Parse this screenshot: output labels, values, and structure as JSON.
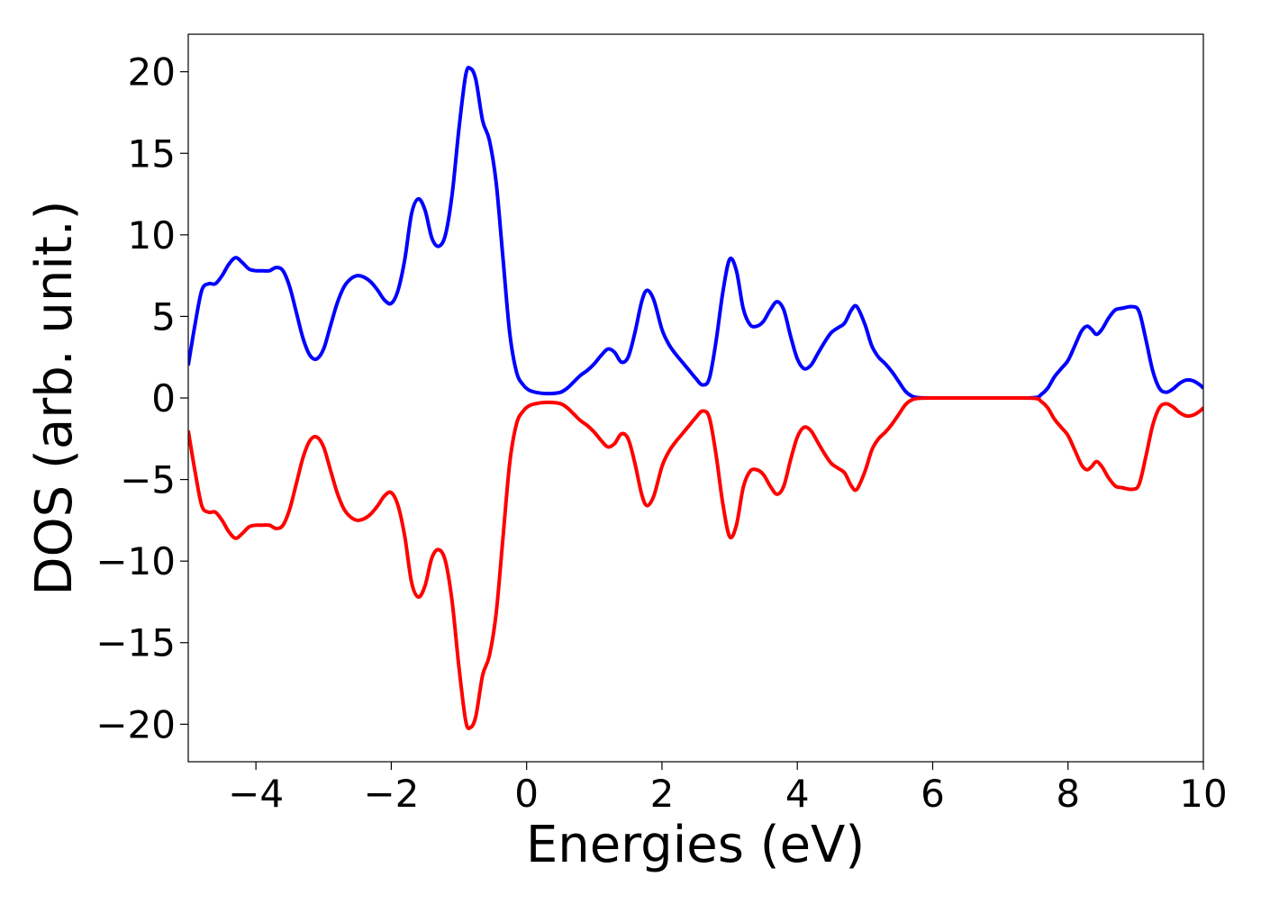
{
  "chart_data": {
    "type": "line",
    "title": "",
    "xlabel": "Energies (eV)",
    "ylabel": "DOS (arb. unit.)",
    "xlim": [
      -5,
      10
    ],
    "ylim": [
      -22.3,
      22.3
    ],
    "xticks": [
      -4,
      -2,
      0,
      2,
      4,
      6,
      8,
      10
    ],
    "xtick_labels": [
      "−4",
      "−2",
      "0",
      "2",
      "4",
      "6",
      "8",
      "10"
    ],
    "yticks": [
      -20,
      -15,
      -10,
      -5,
      0,
      5,
      10,
      15,
      20
    ],
    "ytick_labels": [
      "−20",
      "−15",
      "−10",
      "−5",
      "0",
      "5",
      "10",
      "15",
      "20"
    ],
    "grid": false,
    "legend": "none",
    "series": [
      {
        "color": "#0000ff",
        "points": [
          [
            -5.0,
            2.0
          ],
          [
            -4.9,
            4.5
          ],
          [
            -4.8,
            6.6
          ],
          [
            -4.7,
            7.0
          ],
          [
            -4.6,
            7.0
          ],
          [
            -4.5,
            7.5
          ],
          [
            -4.4,
            8.2
          ],
          [
            -4.3,
            8.6
          ],
          [
            -4.2,
            8.3
          ],
          [
            -4.1,
            7.9
          ],
          [
            -4.0,
            7.8
          ],
          [
            -3.9,
            7.8
          ],
          [
            -3.8,
            7.8
          ],
          [
            -3.7,
            8.0
          ],
          [
            -3.6,
            7.8
          ],
          [
            -3.5,
            6.8
          ],
          [
            -3.4,
            5.2
          ],
          [
            -3.3,
            3.6
          ],
          [
            -3.2,
            2.6
          ],
          [
            -3.1,
            2.4
          ],
          [
            -3.0,
            3.0
          ],
          [
            -2.9,
            4.4
          ],
          [
            -2.8,
            5.8
          ],
          [
            -2.7,
            6.8
          ],
          [
            -2.6,
            7.3
          ],
          [
            -2.5,
            7.5
          ],
          [
            -2.4,
            7.4
          ],
          [
            -2.3,
            7.1
          ],
          [
            -2.2,
            6.6
          ],
          [
            -2.1,
            6.0
          ],
          [
            -2.0,
            5.8
          ],
          [
            -1.9,
            6.6
          ],
          [
            -1.8,
            8.5
          ],
          [
            -1.7,
            11.3
          ],
          [
            -1.6,
            12.2
          ],
          [
            -1.5,
            11.5
          ],
          [
            -1.4,
            9.8
          ],
          [
            -1.3,
            9.3
          ],
          [
            -1.2,
            10.0
          ],
          [
            -1.1,
            12.5
          ],
          [
            -1.0,
            16.5
          ],
          [
            -0.9,
            19.8
          ],
          [
            -0.83,
            20.2
          ],
          [
            -0.75,
            19.5
          ],
          [
            -0.65,
            17.0
          ],
          [
            -0.55,
            15.8
          ],
          [
            -0.45,
            13.2
          ],
          [
            -0.35,
            8.6
          ],
          [
            -0.25,
            4.0
          ],
          [
            -0.15,
            1.6
          ],
          [
            -0.05,
            0.8
          ],
          [
            0.05,
            0.45
          ],
          [
            0.2,
            0.3
          ],
          [
            0.35,
            0.27
          ],
          [
            0.5,
            0.35
          ],
          [
            0.6,
            0.6
          ],
          [
            0.7,
            1.0
          ],
          [
            0.8,
            1.4
          ],
          [
            0.9,
            1.7
          ],
          [
            1.0,
            2.1
          ],
          [
            1.1,
            2.6
          ],
          [
            1.2,
            3.0
          ],
          [
            1.3,
            2.8
          ],
          [
            1.4,
            2.2
          ],
          [
            1.5,
            2.5
          ],
          [
            1.6,
            4.0
          ],
          [
            1.7,
            5.9
          ],
          [
            1.78,
            6.6
          ],
          [
            1.88,
            6.0
          ],
          [
            2.0,
            4.2
          ],
          [
            2.1,
            3.3
          ],
          [
            2.2,
            2.7
          ],
          [
            2.3,
            2.2
          ],
          [
            2.4,
            1.7
          ],
          [
            2.5,
            1.2
          ],
          [
            2.6,
            0.8
          ],
          [
            2.7,
            1.2
          ],
          [
            2.8,
            3.5
          ],
          [
            2.9,
            6.5
          ],
          [
            3.0,
            8.5
          ],
          [
            3.1,
            7.8
          ],
          [
            3.2,
            5.5
          ],
          [
            3.3,
            4.5
          ],
          [
            3.4,
            4.4
          ],
          [
            3.5,
            4.7
          ],
          [
            3.6,
            5.4
          ],
          [
            3.7,
            5.9
          ],
          [
            3.8,
            5.4
          ],
          [
            3.9,
            3.8
          ],
          [
            4.0,
            2.4
          ],
          [
            4.1,
            1.8
          ],
          [
            4.2,
            2.0
          ],
          [
            4.3,
            2.7
          ],
          [
            4.4,
            3.4
          ],
          [
            4.5,
            4.0
          ],
          [
            4.6,
            4.3
          ],
          [
            4.7,
            4.6
          ],
          [
            4.8,
            5.4
          ],
          [
            4.88,
            5.6
          ],
          [
            5.0,
            4.5
          ],
          [
            5.1,
            3.2
          ],
          [
            5.2,
            2.5
          ],
          [
            5.3,
            2.1
          ],
          [
            5.4,
            1.6
          ],
          [
            5.5,
            1.0
          ],
          [
            5.6,
            0.4
          ],
          [
            5.7,
            0.1
          ],
          [
            5.8,
            0.02
          ],
          [
            6.0,
            0.0
          ],
          [
            7.0,
            0.0
          ],
          [
            7.5,
            0.02
          ],
          [
            7.6,
            0.2
          ],
          [
            7.7,
            0.6
          ],
          [
            7.8,
            1.3
          ],
          [
            7.9,
            1.8
          ],
          [
            8.0,
            2.3
          ],
          [
            8.1,
            3.2
          ],
          [
            8.2,
            4.1
          ],
          [
            8.28,
            4.4
          ],
          [
            8.35,
            4.2
          ],
          [
            8.42,
            3.9
          ],
          [
            8.5,
            4.2
          ],
          [
            8.6,
            4.9
          ],
          [
            8.7,
            5.4
          ],
          [
            8.8,
            5.5
          ],
          [
            8.95,
            5.6
          ],
          [
            9.05,
            5.3
          ],
          [
            9.15,
            3.6
          ],
          [
            9.25,
            1.7
          ],
          [
            9.35,
            0.6
          ],
          [
            9.45,
            0.35
          ],
          [
            9.55,
            0.55
          ],
          [
            9.65,
            0.9
          ],
          [
            9.75,
            1.1
          ],
          [
            9.85,
            1.05
          ],
          [
            9.95,
            0.8
          ],
          [
            10.0,
            0.6
          ]
        ]
      },
      {
        "color": "#ff0000",
        "points": [
          [
            -5.0,
            -2.0
          ],
          [
            -4.9,
            -4.5
          ],
          [
            -4.8,
            -6.6
          ],
          [
            -4.7,
            -7.0
          ],
          [
            -4.6,
            -7.0
          ],
          [
            -4.5,
            -7.5
          ],
          [
            -4.4,
            -8.2
          ],
          [
            -4.3,
            -8.6
          ],
          [
            -4.2,
            -8.3
          ],
          [
            -4.1,
            -7.9
          ],
          [
            -4.0,
            -7.8
          ],
          [
            -3.9,
            -7.8
          ],
          [
            -3.8,
            -7.8
          ],
          [
            -3.7,
            -8.0
          ],
          [
            -3.6,
            -7.8
          ],
          [
            -3.5,
            -6.8
          ],
          [
            -3.4,
            -5.2
          ],
          [
            -3.3,
            -3.6
          ],
          [
            -3.2,
            -2.6
          ],
          [
            -3.1,
            -2.4
          ],
          [
            -3.0,
            -3.0
          ],
          [
            -2.9,
            -4.4
          ],
          [
            -2.8,
            -5.8
          ],
          [
            -2.7,
            -6.8
          ],
          [
            -2.6,
            -7.3
          ],
          [
            -2.5,
            -7.5
          ],
          [
            -2.4,
            -7.4
          ],
          [
            -2.3,
            -7.1
          ],
          [
            -2.2,
            -6.6
          ],
          [
            -2.1,
            -6.0
          ],
          [
            -2.0,
            -5.8
          ],
          [
            -1.9,
            -6.6
          ],
          [
            -1.8,
            -8.5
          ],
          [
            -1.7,
            -11.3
          ],
          [
            -1.6,
            -12.2
          ],
          [
            -1.5,
            -11.5
          ],
          [
            -1.4,
            -9.8
          ],
          [
            -1.3,
            -9.3
          ],
          [
            -1.2,
            -10.0
          ],
          [
            -1.1,
            -12.5
          ],
          [
            -1.0,
            -16.5
          ],
          [
            -0.9,
            -19.8
          ],
          [
            -0.83,
            -20.2
          ],
          [
            -0.75,
            -19.5
          ],
          [
            -0.65,
            -17.0
          ],
          [
            -0.55,
            -15.8
          ],
          [
            -0.45,
            -13.2
          ],
          [
            -0.35,
            -8.6
          ],
          [
            -0.25,
            -4.0
          ],
          [
            -0.15,
            -1.6
          ],
          [
            -0.05,
            -0.8
          ],
          [
            0.05,
            -0.45
          ],
          [
            0.2,
            -0.3
          ],
          [
            0.35,
            -0.27
          ],
          [
            0.5,
            -0.35
          ],
          [
            0.6,
            -0.6
          ],
          [
            0.7,
            -1.0
          ],
          [
            0.8,
            -1.4
          ],
          [
            0.9,
            -1.7
          ],
          [
            1.0,
            -2.1
          ],
          [
            1.1,
            -2.6
          ],
          [
            1.2,
            -3.0
          ],
          [
            1.3,
            -2.8
          ],
          [
            1.4,
            -2.2
          ],
          [
            1.5,
            -2.5
          ],
          [
            1.6,
            -4.0
          ],
          [
            1.7,
            -5.9
          ],
          [
            1.78,
            -6.6
          ],
          [
            1.88,
            -6.0
          ],
          [
            2.0,
            -4.2
          ],
          [
            2.1,
            -3.3
          ],
          [
            2.2,
            -2.7
          ],
          [
            2.3,
            -2.2
          ],
          [
            2.4,
            -1.7
          ],
          [
            2.5,
            -1.2
          ],
          [
            2.6,
            -0.8
          ],
          [
            2.7,
            -1.2
          ],
          [
            2.8,
            -3.5
          ],
          [
            2.9,
            -6.5
          ],
          [
            3.0,
            -8.5
          ],
          [
            3.1,
            -7.8
          ],
          [
            3.2,
            -5.5
          ],
          [
            3.3,
            -4.5
          ],
          [
            3.4,
            -4.4
          ],
          [
            3.5,
            -4.7
          ],
          [
            3.6,
            -5.4
          ],
          [
            3.7,
            -5.9
          ],
          [
            3.8,
            -5.4
          ],
          [
            3.9,
            -3.8
          ],
          [
            4.0,
            -2.4
          ],
          [
            4.1,
            -1.8
          ],
          [
            4.2,
            -2.0
          ],
          [
            4.3,
            -2.7
          ],
          [
            4.4,
            -3.4
          ],
          [
            4.5,
            -4.0
          ],
          [
            4.6,
            -4.3
          ],
          [
            4.7,
            -4.6
          ],
          [
            4.8,
            -5.4
          ],
          [
            4.88,
            -5.6
          ],
          [
            5.0,
            -4.5
          ],
          [
            5.1,
            -3.2
          ],
          [
            5.2,
            -2.5
          ],
          [
            5.3,
            -2.1
          ],
          [
            5.4,
            -1.6
          ],
          [
            5.5,
            -1.0
          ],
          [
            5.6,
            -0.4
          ],
          [
            5.7,
            -0.1
          ],
          [
            5.8,
            -0.02
          ],
          [
            6.0,
            0.0
          ],
          [
            7.0,
            0.0
          ],
          [
            7.5,
            -0.02
          ],
          [
            7.6,
            -0.2
          ],
          [
            7.7,
            -0.6
          ],
          [
            7.8,
            -1.3
          ],
          [
            7.9,
            -1.8
          ],
          [
            8.0,
            -2.3
          ],
          [
            8.1,
            -3.2
          ],
          [
            8.2,
            -4.1
          ],
          [
            8.28,
            -4.4
          ],
          [
            8.35,
            -4.2
          ],
          [
            8.42,
            -3.9
          ],
          [
            8.5,
            -4.2
          ],
          [
            8.6,
            -4.9
          ],
          [
            8.7,
            -5.4
          ],
          [
            8.8,
            -5.5
          ],
          [
            8.95,
            -5.6
          ],
          [
            9.05,
            -5.3
          ],
          [
            9.15,
            -3.6
          ],
          [
            9.25,
            -1.7
          ],
          [
            9.35,
            -0.6
          ],
          [
            9.45,
            -0.35
          ],
          [
            9.55,
            -0.55
          ],
          [
            9.65,
            -0.9
          ],
          [
            9.75,
            -1.1
          ],
          [
            9.85,
            -1.05
          ],
          [
            9.95,
            -0.8
          ],
          [
            10.0,
            -0.6
          ]
        ]
      }
    ]
  }
}
